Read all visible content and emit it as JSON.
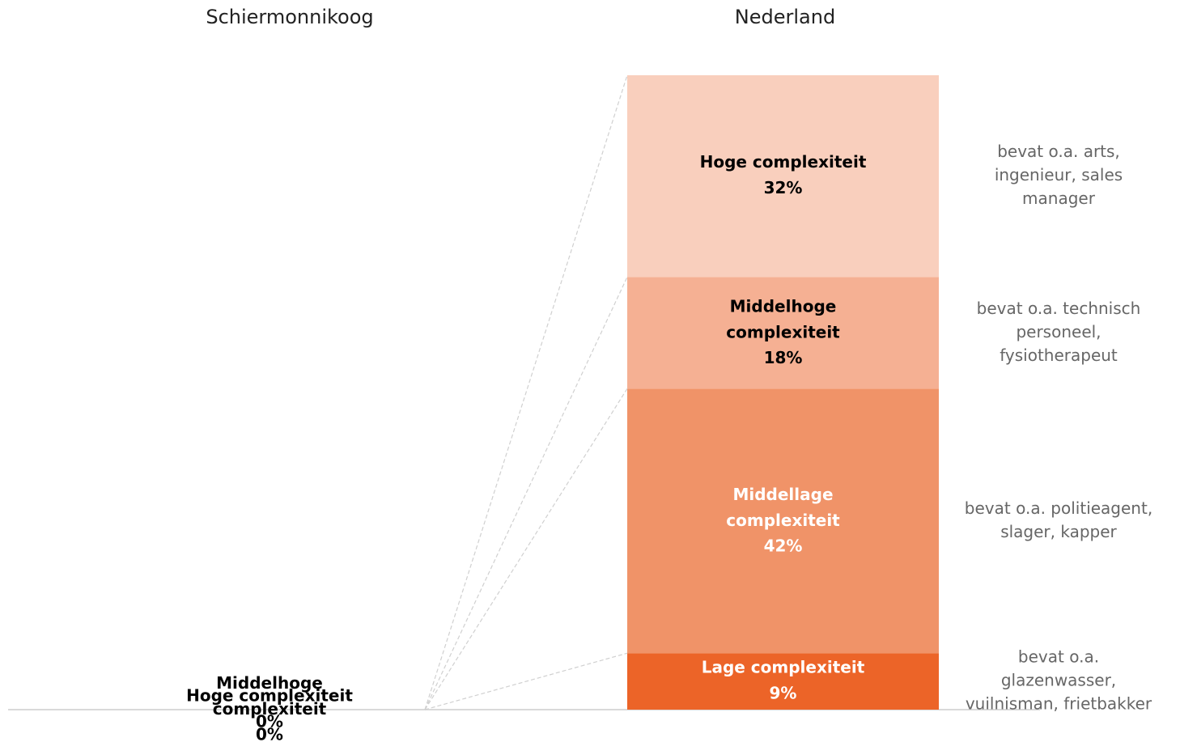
{
  "chart_data": {
    "type": "stacked_bar",
    "categories": [
      "Schiermonnikoog",
      "Nederland"
    ],
    "ylim": [
      0,
      100
    ],
    "series": [
      {
        "name": "Lage complexiteit",
        "color": "#ec6428",
        "label_color": "#ffffff",
        "values": [
          0,
          8.9
        ],
        "value_labels": [
          "0%",
          "9%"
        ],
        "description": [
          "bevat o.a.",
          "glazenwasser,",
          "vuilnisman, frietbakker"
        ]
      },
      {
        "name": "Middellage complexiteit",
        "color": "#f09368",
        "label_color": "#ffffff",
        "values": [
          0,
          41.7
        ],
        "value_labels": [
          "0%",
          "42%"
        ],
        "description": [
          "bevat o.a. politieagent,",
          "slager, kapper"
        ]
      },
      {
        "name": "Middelhoge complexiteit",
        "color": "#f5b093",
        "label_color": "#000000",
        "values": [
          0,
          17.6
        ],
        "value_labels": [
          "0%",
          "18%"
        ],
        "description": [
          "bevat o.a. technisch",
          "personeel,",
          "fysiotherapeut"
        ]
      },
      {
        "name": "Hoge complexiteit",
        "color": "#f9cfbd",
        "label_color": "#000000",
        "values": [
          0,
          31.8
        ],
        "value_labels": [
          "0%",
          "32%"
        ],
        "description": [
          "bevat o.a. arts,",
          "ingenieur, sales",
          "manager"
        ]
      }
    ]
  }
}
